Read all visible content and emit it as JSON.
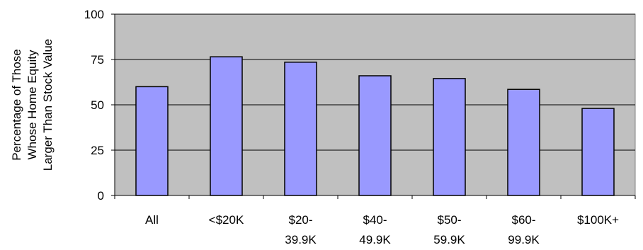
{
  "chart_data": {
    "type": "bar",
    "title": "",
    "xlabel": "",
    "ylabel_lines": [
      "Percentage of Those",
      "Whose Home Equity",
      "Larger Than Stock Value"
    ],
    "categories": [
      [
        "All"
      ],
      [
        "<$20K"
      ],
      [
        "$20-",
        "39.9K"
      ],
      [
        "$40-",
        "49.9K"
      ],
      [
        "$50-",
        "59.9K"
      ],
      [
        "$60-",
        "99.9K"
      ],
      [
        "$100K+"
      ]
    ],
    "values": [
      60,
      76.5,
      73.5,
      66,
      64.5,
      58.5,
      48
    ],
    "ylim": [
      0,
      100
    ],
    "yticks": [
      0,
      25,
      50,
      75,
      100
    ],
    "grid": true,
    "legend": "none",
    "colors": {
      "plot_background": "#C0C0C0",
      "bar_fill": "#9999FF",
      "bar_stroke": "#000000",
      "grid": "#000000"
    }
  }
}
